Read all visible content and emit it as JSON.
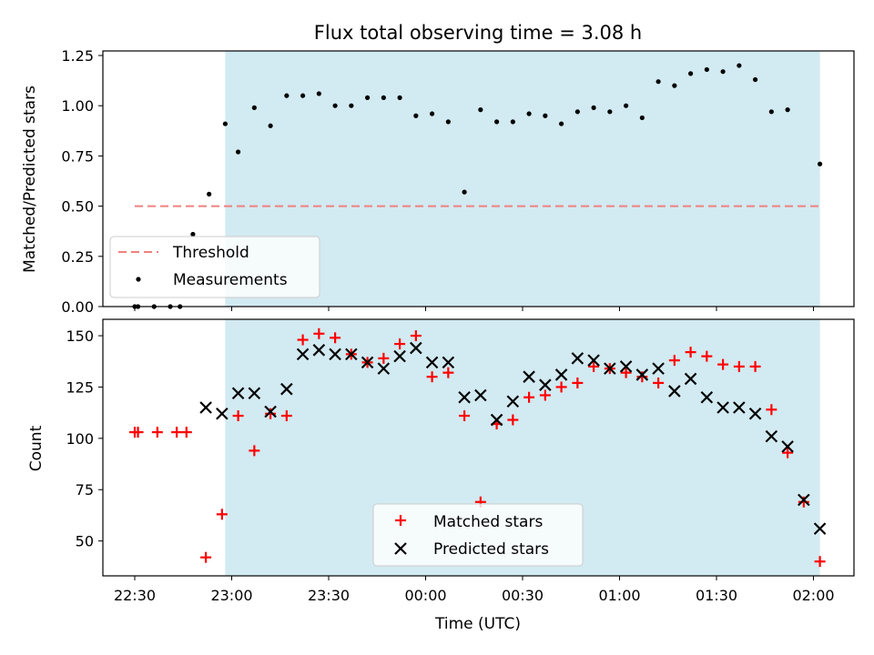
{
  "chart_data": [
    {
      "type": "scatter",
      "title": "Flux total observing time = 3.08 h",
      "xlabel": "",
      "ylabel": "Matched/Predicted stars",
      "ylim": [
        0,
        1.25
      ],
      "yticks": [
        "0.00",
        "0.25",
        "0.50",
        "0.75",
        "1.00",
        "1.25"
      ],
      "shaded_interval": [
        "22:58",
        "02:02"
      ],
      "legend_location": "lower-left",
      "threshold": {
        "name": "Threshold",
        "value": 0.5,
        "x_start": "22:30",
        "x_end": "02:02",
        "color": "#f08080"
      },
      "series": [
        {
          "name": "Measurements",
          "color": "#000000",
          "points": [
            [
              "22:30",
              0.0
            ],
            [
              "22:31",
              0.0
            ],
            [
              "22:36",
              0.0
            ],
            [
              "22:41",
              0.0
            ],
            [
              "22:44",
              0.0
            ],
            [
              "22:48",
              0.36
            ],
            [
              "22:53",
              0.56
            ],
            [
              "22:58",
              0.91
            ],
            [
              "23:02",
              0.77
            ],
            [
              "23:07",
              0.99
            ],
            [
              "23:12",
              0.9
            ],
            [
              "23:17",
              1.05
            ],
            [
              "23:22",
              1.05
            ],
            [
              "23:27",
              1.06
            ],
            [
              "23:32",
              1.0
            ],
            [
              "23:37",
              1.0
            ],
            [
              "23:42",
              1.04
            ],
            [
              "23:47",
              1.04
            ],
            [
              "23:52",
              1.04
            ],
            [
              "23:57",
              0.95
            ],
            [
              "00:02",
              0.96
            ],
            [
              "00:07",
              0.92
            ],
            [
              "00:12",
              0.57
            ],
            [
              "00:17",
              0.98
            ],
            [
              "00:22",
              0.92
            ],
            [
              "00:27",
              0.92
            ],
            [
              "00:32",
              0.96
            ],
            [
              "00:37",
              0.95
            ],
            [
              "00:42",
              0.91
            ],
            [
              "00:47",
              0.97
            ],
            [
              "00:52",
              0.99
            ],
            [
              "00:57",
              0.97
            ],
            [
              "01:02",
              1.0
            ],
            [
              "01:07",
              0.94
            ],
            [
              "01:12",
              1.12
            ],
            [
              "01:17",
              1.1
            ],
            [
              "01:22",
              1.16
            ],
            [
              "01:27",
              1.18
            ],
            [
              "01:32",
              1.17
            ],
            [
              "01:37",
              1.2
            ],
            [
              "01:42",
              1.13
            ],
            [
              "01:47",
              0.97
            ],
            [
              "01:52",
              0.98
            ],
            [
              "02:02",
              0.71
            ]
          ]
        }
      ]
    },
    {
      "type": "scatter",
      "title": "",
      "xlabel": "Time (UTC)",
      "ylabel": "Count",
      "ylim": [
        33,
        158
      ],
      "yticks": [
        "50",
        "75",
        "100",
        "125",
        "150"
      ],
      "xticks": [
        "22:30",
        "23:00",
        "23:30",
        "00:00",
        "00:30",
        "01:00",
        "01:30",
        "02:00"
      ],
      "shaded_interval": [
        "22:58",
        "02:02"
      ],
      "legend_location": "lower-center",
      "series": [
        {
          "name": "Matched stars",
          "marker": "plus",
          "color": "#ff0000",
          "points": [
            [
              "22:30",
              103
            ],
            [
              "22:31",
              103
            ],
            [
              "22:37",
              103
            ],
            [
              "22:43",
              103
            ],
            [
              "22:46",
              103
            ],
            [
              "22:52",
              42
            ],
            [
              "22:57",
              63
            ],
            [
              "23:02",
              111
            ],
            [
              "23:07",
              94
            ],
            [
              "23:12",
              112
            ],
            [
              "23:17",
              111
            ],
            [
              "23:22",
              148
            ],
            [
              "23:27",
              151
            ],
            [
              "23:32",
              149
            ],
            [
              "23:37",
              141
            ],
            [
              "23:42",
              137
            ],
            [
              "23:47",
              139
            ],
            [
              "23:52",
              146
            ],
            [
              "23:57",
              150
            ],
            [
              "00:02",
              130
            ],
            [
              "00:07",
              132
            ],
            [
              "00:12",
              111
            ],
            [
              "00:17",
              69
            ],
            [
              "00:22",
              107
            ],
            [
              "00:27",
              109
            ],
            [
              "00:32",
              120
            ],
            [
              "00:37",
              121
            ],
            [
              "00:42",
              125
            ],
            [
              "00:47",
              127
            ],
            [
              "00:52",
              135
            ],
            [
              "00:57",
              134
            ],
            [
              "01:02",
              132
            ],
            [
              "01:07",
              130
            ],
            [
              "01:12",
              127
            ],
            [
              "01:17",
              138
            ],
            [
              "01:22",
              142
            ],
            [
              "01:27",
              140
            ],
            [
              "01:32",
              136
            ],
            [
              "01:37",
              135
            ],
            [
              "01:42",
              135
            ],
            [
              "01:47",
              114
            ],
            [
              "01:52",
              93
            ],
            [
              "01:57",
              69
            ],
            [
              "02:02",
              40
            ]
          ]
        },
        {
          "name": "Predicted stars",
          "marker": "x",
          "color": "#000000",
          "points": [
            [
              "22:52",
              115
            ],
            [
              "22:57",
              112
            ],
            [
              "23:02",
              122
            ],
            [
              "23:07",
              122
            ],
            [
              "23:12",
              113
            ],
            [
              "23:17",
              124
            ],
            [
              "23:22",
              141
            ],
            [
              "23:27",
              143
            ],
            [
              "23:32",
              141
            ],
            [
              "23:37",
              141
            ],
            [
              "23:42",
              137
            ],
            [
              "23:47",
              134
            ],
            [
              "23:52",
              140
            ],
            [
              "23:57",
              144
            ],
            [
              "00:02",
              137
            ],
            [
              "00:07",
              137
            ],
            [
              "00:12",
              120
            ],
            [
              "00:17",
              121
            ],
            [
              "00:22",
              109
            ],
            [
              "00:27",
              118
            ],
            [
              "00:32",
              130
            ],
            [
              "00:37",
              126
            ],
            [
              "00:42",
              131
            ],
            [
              "00:47",
              139
            ],
            [
              "00:52",
              138
            ],
            [
              "00:57",
              134
            ],
            [
              "01:02",
              135
            ],
            [
              "01:07",
              131
            ],
            [
              "01:12",
              134
            ],
            [
              "01:17",
              123
            ],
            [
              "01:22",
              129
            ],
            [
              "01:27",
              120
            ],
            [
              "01:32",
              115
            ],
            [
              "01:37",
              115
            ],
            [
              "01:42",
              112
            ],
            [
              "01:47",
              101
            ],
            [
              "01:52",
              96
            ],
            [
              "01:57",
              70
            ],
            [
              "02:02",
              56
            ]
          ]
        }
      ]
    }
  ]
}
